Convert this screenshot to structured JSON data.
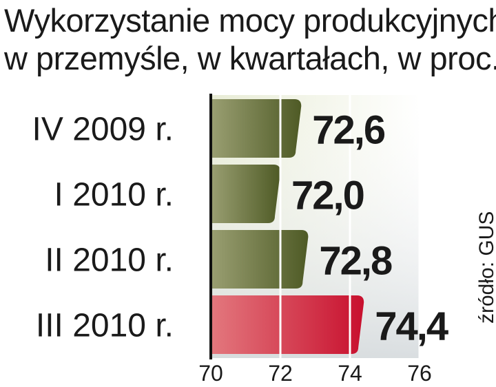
{
  "title_line1": "Wykorzystanie mocy produkcyjnych",
  "title_line2": "w przemyśle, w kwartałach, w proc.",
  "source": "źródło: GUS",
  "colors": {
    "bar_default_dark": "#4e5a25",
    "bar_default_light": "#9a9f72",
    "bar_highlight_dark": "#c8102e",
    "bar_highlight_light": "#e3787e",
    "text": "#1a1a1a"
  },
  "chart_data": {
    "type": "bar",
    "orientation": "horizontal",
    "categories": [
      "IV 2009 r.",
      "I 2010 r.",
      "II 2010 r.",
      "III 2010 r."
    ],
    "values": [
      72.6,
      72.0,
      72.8,
      74.4
    ],
    "value_labels": [
      "72,6",
      "72,0",
      "72,8",
      "74,4"
    ],
    "highlight_index": 3,
    "xlim": [
      70,
      76
    ],
    "xticks": [
      70,
      72,
      74,
      76
    ],
    "xtick_labels": [
      "70",
      "72",
      "74",
      "76"
    ],
    "grid": true
  }
}
